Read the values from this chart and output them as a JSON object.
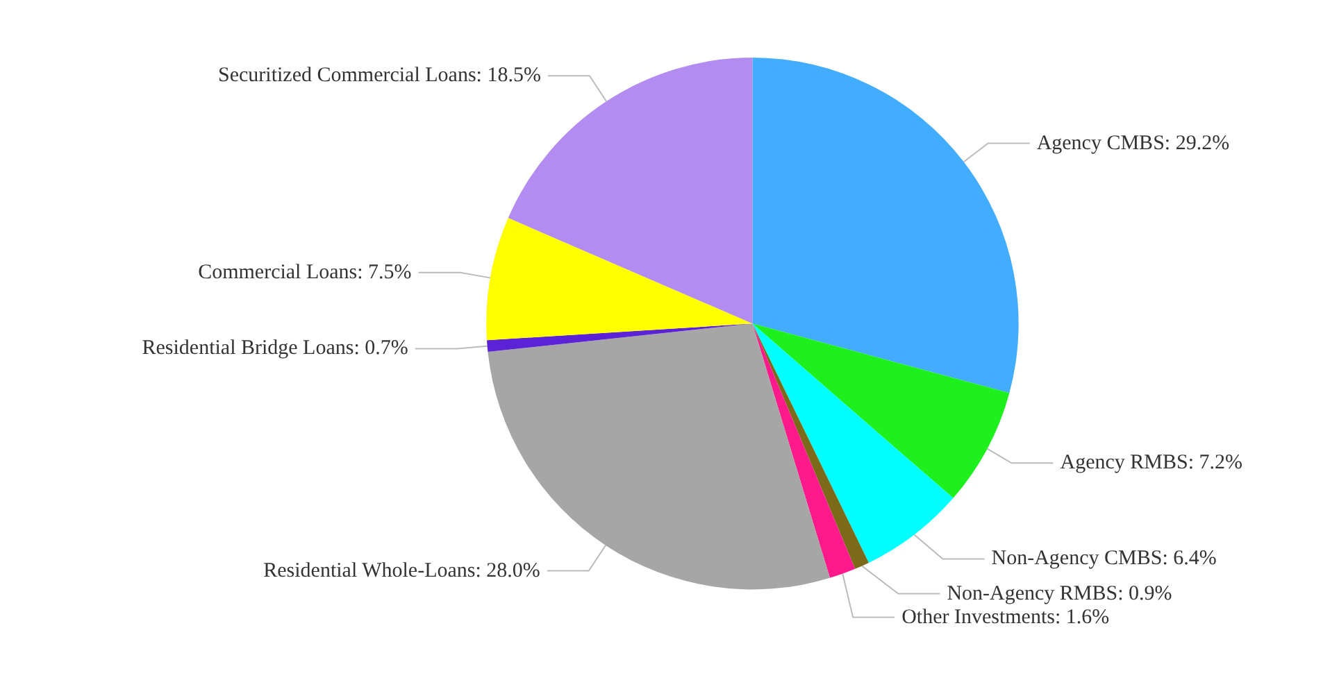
{
  "chart_data": {
    "type": "pie",
    "categories": [
      "Agency CMBS",
      "Agency RMBS",
      "Non-Agency CMBS",
      "Non-Agency RMBS",
      "Other Investments",
      "Residential Whole-Loans",
      "Residential Bridge Loans",
      "Commercial Loans",
      "Securitized Commercial Loans"
    ],
    "values": [
      29.2,
      7.2,
      6.4,
      0.9,
      1.6,
      28.0,
      0.7,
      7.5,
      18.5
    ],
    "value_labels": [
      "29.2%",
      "7.2%",
      "6.4%",
      "0.9%",
      "1.6%",
      "28.0%",
      "0.7%",
      "7.5%",
      "18.5%"
    ],
    "colors": [
      "#42acff",
      "#1ef01e",
      "#00ffff",
      "#7a6a1a",
      "#ff1a8c",
      "#a6a6a6",
      "#5b22d6",
      "#ffff00",
      "#b38cf2"
    ],
    "legend": false
  }
}
